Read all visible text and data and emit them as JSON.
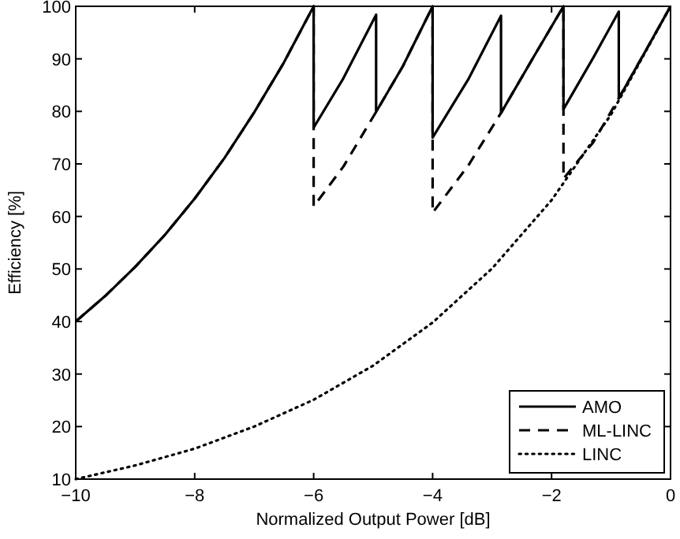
{
  "chart_data": {
    "type": "line",
    "xlabel": "Normalized Output Power [dB]",
    "ylabel": "Efficiency [%]",
    "xlim": [
      -10,
      0
    ],
    "ylim": [
      10,
      100
    ],
    "xticks": [
      -10,
      -8,
      -6,
      -4,
      -2,
      0
    ],
    "yticks": [
      10,
      20,
      30,
      40,
      50,
      60,
      70,
      80,
      90,
      100
    ],
    "grid": false,
    "legend": "bottom right",
    "series": [
      {
        "name": "AMO",
        "color": "#000000",
        "line_style": "solid",
        "x": [
          -10,
          -9.5,
          -9,
          -8.5,
          -8,
          -7.5,
          -7,
          -6.5,
          -6,
          -6,
          -5.5,
          -4.95,
          -4.95,
          -4.5,
          -4,
          -4,
          -3.4,
          -2.85,
          -2.85,
          -2.3,
          -1.8,
          -1.8,
          -1.3,
          -0.87,
          -0.87,
          -0.4,
          0
        ],
        "values": [
          40,
          44.9,
          50.4,
          56.5,
          63.4,
          71.1,
          79.8,
          89.3,
          100,
          76.9,
          86.3,
          98.4,
          79.9,
          88.6,
          100,
          75,
          86.1,
          98.2,
          79.7,
          90.4,
          100,
          80.4,
          90.2,
          99,
          82.5,
          91.9,
          100
        ]
      },
      {
        "name": "ML-LINC",
        "color": "#000000",
        "line_style": "dashed",
        "x": [
          -10,
          -9.5,
          -9,
          -8.5,
          -8,
          -7.5,
          -7,
          -6.5,
          -6,
          -6,
          -5.5,
          -4.95,
          -4.5,
          -4,
          -4,
          -3.4,
          -2.85,
          -2.3,
          -1.8,
          -1.8,
          -1.3,
          -0.87,
          -0.4,
          0
        ],
        "values": [
          40,
          44.9,
          50.4,
          56.5,
          63.4,
          71.1,
          79.8,
          89.3,
          100,
          61.9,
          69.5,
          79.9,
          88.6,
          100,
          60.7,
          69.7,
          79.7,
          90.4,
          100,
          67.2,
          74.1,
          82.5,
          91.9,
          100
        ]
      },
      {
        "name": "LINC",
        "color": "#000000",
        "line_style": "dotted",
        "x": [
          -10,
          -9,
          -8,
          -7,
          -6,
          -5,
          -4,
          -3,
          -2,
          -1,
          0
        ],
        "values": [
          10,
          12.6,
          15.8,
          20,
          25.1,
          31.6,
          39.8,
          50.1,
          63.1,
          79.4,
          100
        ]
      }
    ]
  }
}
